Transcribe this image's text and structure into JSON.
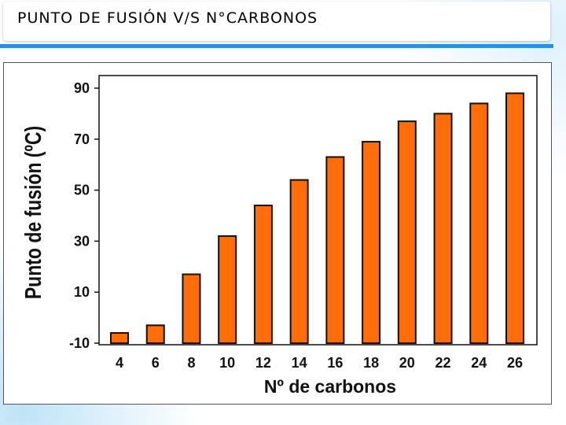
{
  "slide": {
    "title": "PUNTO DE FUSIÓN V/S N°CARBONOS"
  },
  "colors": {
    "bar_fill": "#ff6d0a",
    "bar_stroke": "#111111",
    "accent": "#2f8fdc"
  },
  "chart_data": {
    "type": "bar",
    "xlabel": "Nº de carbonos",
    "ylabel": "Punto de fusión  (ºC)",
    "categories": [
      "4",
      "6",
      "8",
      "10",
      "12",
      "14",
      "16",
      "18",
      "20",
      "22",
      "24",
      "26"
    ],
    "values": [
      -6,
      -3,
      17,
      32,
      44,
      54,
      63,
      69,
      77,
      80,
      84,
      88
    ],
    "yticks": [
      90,
      70,
      50,
      30,
      10,
      -10
    ],
    "ylim": [
      -10,
      95
    ],
    "grid": false,
    "legend": "none"
  }
}
